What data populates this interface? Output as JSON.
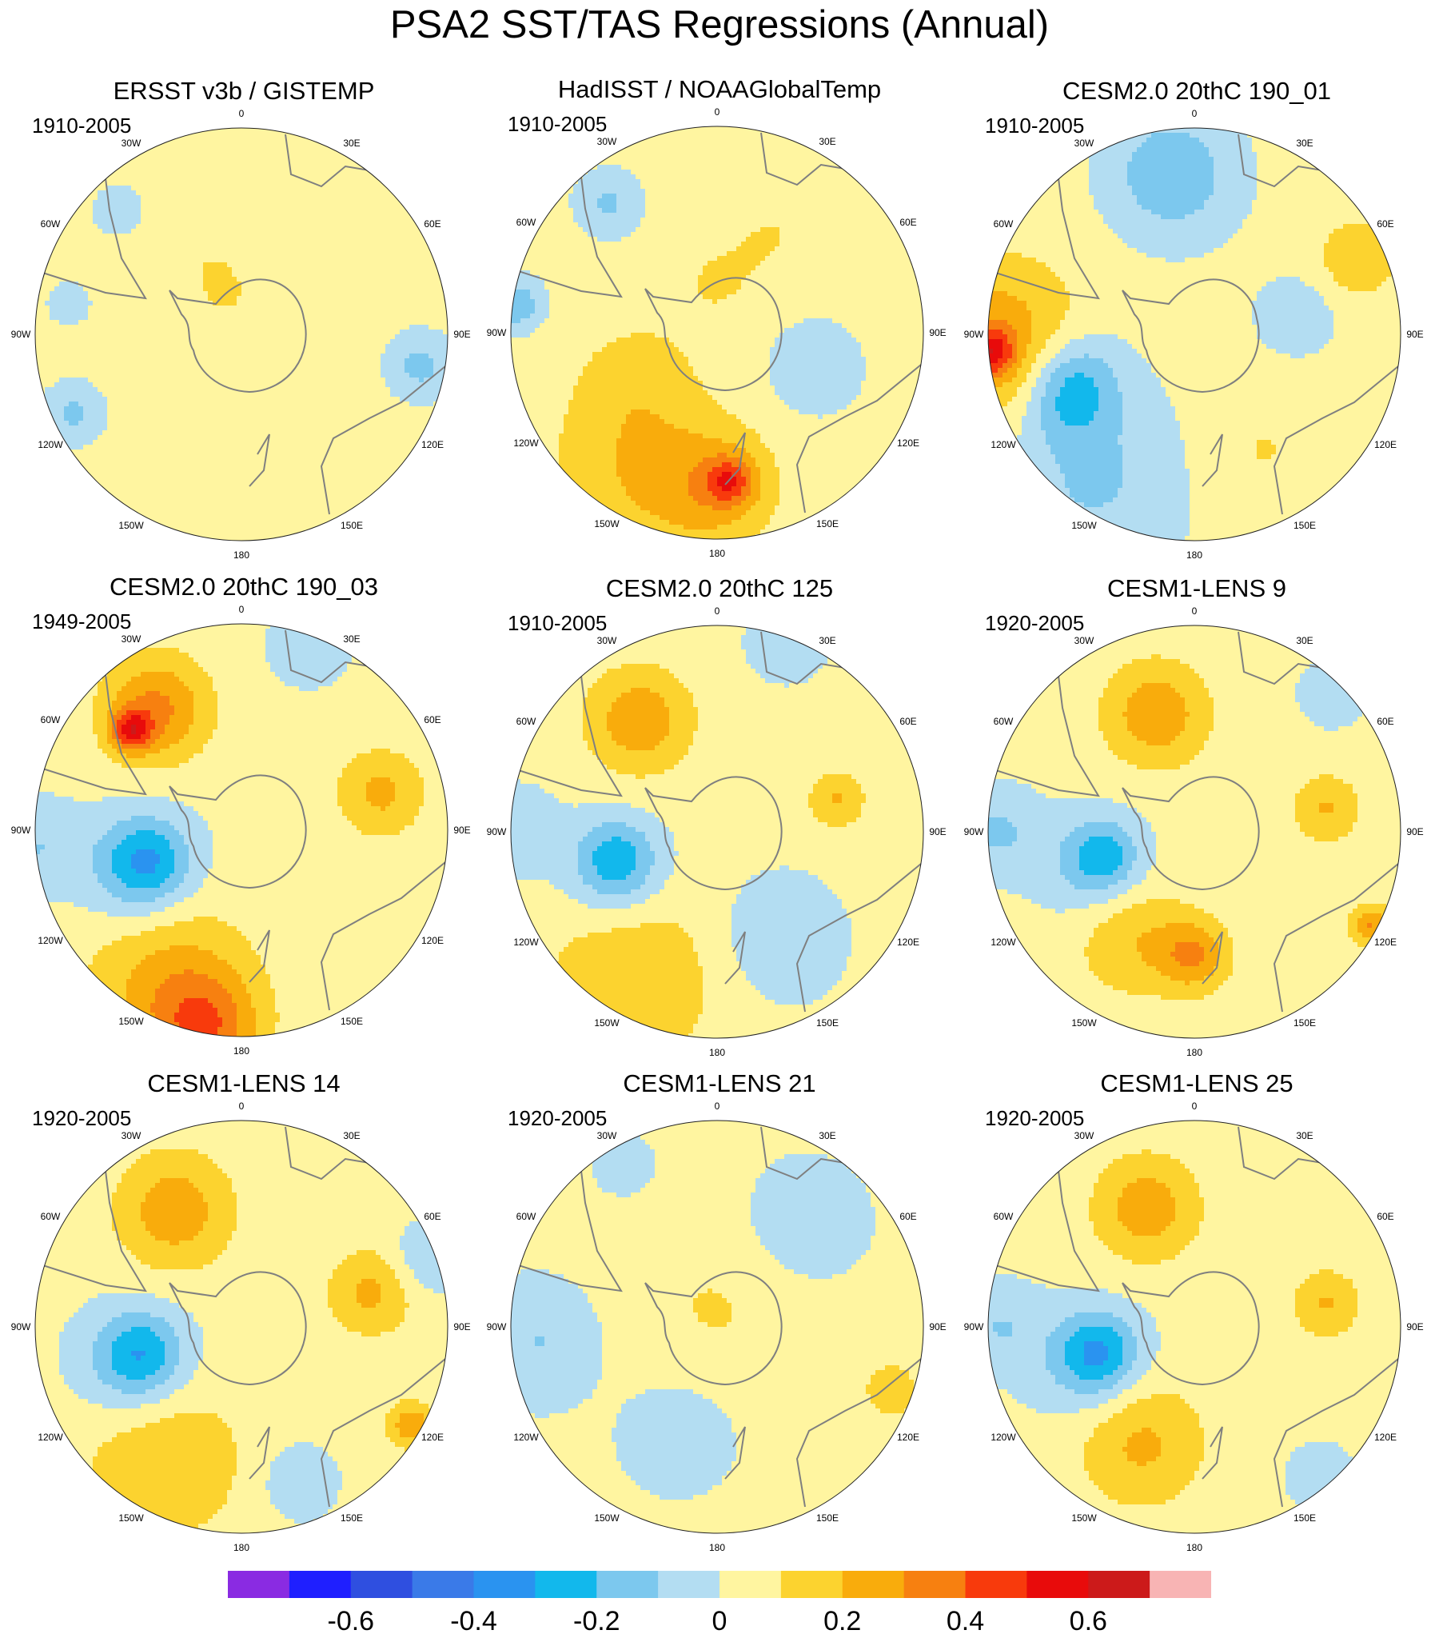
{
  "title": "PSA2 SST/TAS Regressions (Annual)",
  "chart_data": {
    "type": "contour-map",
    "projection": "south-polar-stereographic",
    "variable": "SST/TAS regression on PSA2",
    "season": "Annual",
    "longitude_labels": [
      "0",
      "30E",
      "60E",
      "90E",
      "120E",
      "150E",
      "180",
      "150W",
      "120W",
      "90W",
      "60W",
      "30W"
    ],
    "colorbar": {
      "levels": [
        -0.7,
        -0.6,
        -0.5,
        -0.4,
        -0.3,
        -0.2,
        -0.1,
        0,
        0.1,
        0.2,
        0.3,
        0.4,
        0.5,
        0.6,
        0.7
      ],
      "tick_labels": [
        "-0.6",
        "-0.4",
        "-0.2",
        "0",
        "0.2",
        "0.4",
        "0.6"
      ],
      "tick_values": [
        -0.6,
        -0.4,
        -0.2,
        0,
        0.2,
        0.4,
        0.6
      ],
      "colors": [
        "#8a2be2",
        "#1f1fff",
        "#2f4fe0",
        "#3a7ae8",
        "#2a93f0",
        "#12b8ec",
        "#7cc8ee",
        "#b3ddf2",
        "#fff5a0",
        "#fcd32f",
        "#f9ac0c",
        "#f78010",
        "#f83a0c",
        "#e80b0b",
        "#cc1a1a",
        "#f8b4b4"
      ]
    },
    "panels": [
      {
        "title": "ERSST v3b / GISTEMP",
        "period": "1910-2005",
        "blobs": [
          {
            "lon": -20,
            "r": 0.2,
            "rad": 0.09,
            "v": 0.08
          },
          {
            "lon": -25,
            "r": 0.35,
            "rad": 0.1,
            "v": 0.07
          },
          {
            "lon": 175,
            "r": 0.4,
            "rad": 0.1,
            "v": 0.07
          },
          {
            "lon": 100,
            "r": 0.88,
            "rad": 0.1,
            "v": -0.16
          },
          {
            "lon": -115,
            "r": 0.9,
            "rad": 0.09,
            "v": -0.15
          },
          {
            "lon": -80,
            "r": 0.85,
            "rad": 0.06,
            "v": -0.12
          },
          {
            "lon": -45,
            "r": 0.85,
            "rad": 0.07,
            "v": -0.12
          }
        ]
      },
      {
        "title": "HadISST / NOAAGlobalTemp",
        "period": "1910-2005",
        "blobs": [
          {
            "lon": 0,
            "r": 0.25,
            "rad": 0.17,
            "v": 0.08
          },
          {
            "lon": -120,
            "r": 0.45,
            "rad": 0.22,
            "v": 0.1
          },
          {
            "lon": -150,
            "r": 0.8,
            "rad": 0.3,
            "v": 0.16
          },
          {
            "lon": 180,
            "r": 0.75,
            "rad": 0.2,
            "v": 0.2
          },
          {
            "lon": 175,
            "r": 0.72,
            "rad": 0.08,
            "v": 0.27
          },
          {
            "lon": -40,
            "r": 0.82,
            "rad": 0.1,
            "v": -0.14
          },
          {
            "lon": -82,
            "r": 0.98,
            "rad": 0.08,
            "v": -0.22
          },
          {
            "lon": 110,
            "r": 0.5,
            "rad": 0.14,
            "v": -0.12
          },
          {
            "lon": 30,
            "r": 0.55,
            "rad": 0.15,
            "v": 0.07
          }
        ]
      },
      {
        "title": "CESM2.0 20thC 190_01",
        "period": "1910-2005",
        "blobs": [
          {
            "lon": -8,
            "r": 0.78,
            "rad": 0.2,
            "v": -0.22
          },
          {
            "lon": -92,
            "r": 0.95,
            "rad": 0.28,
            "v": 0.25
          },
          {
            "lon": -95,
            "r": 0.99,
            "rad": 0.08,
            "v": 0.35
          },
          {
            "lon": -110,
            "r": 0.62,
            "rad": 0.16,
            "v": -0.22
          },
          {
            "lon": -120,
            "r": 0.72,
            "rad": 0.14,
            "v": -0.12
          },
          {
            "lon": 65,
            "r": 0.88,
            "rad": 0.14,
            "v": 0.16
          },
          {
            "lon": 80,
            "r": 0.5,
            "rad": 0.12,
            "v": -0.12
          },
          {
            "lon": 150,
            "r": 0.65,
            "rad": 0.22,
            "v": 0.08
          },
          {
            "lon": -145,
            "r": 0.85,
            "rad": 0.3,
            "v": -0.14
          }
        ]
      },
      {
        "title": "CESM2.0 20thC 190_03",
        "period": "1949-2005",
        "blobs": [
          {
            "lon": -35,
            "r": 0.72,
            "rad": 0.18,
            "v": 0.3
          },
          {
            "lon": -48,
            "r": 0.72,
            "rad": 0.07,
            "v": 0.38
          },
          {
            "lon": -108,
            "r": 0.48,
            "rad": 0.14,
            "v": -0.25
          },
          {
            "lon": -112,
            "r": 0.55,
            "rad": 0.2,
            "v": -0.14
          },
          {
            "lon": -155,
            "r": 0.82,
            "rad": 0.28,
            "v": 0.22
          },
          {
            "lon": -170,
            "r": 0.98,
            "rad": 0.18,
            "v": 0.28
          },
          {
            "lon": 75,
            "r": 0.7,
            "rad": 0.15,
            "v": 0.2
          },
          {
            "lon": 20,
            "r": 0.95,
            "rad": 0.12,
            "v": -0.12
          },
          {
            "lon": -95,
            "r": 1.0,
            "rad": 0.15,
            "v": -0.12
          }
        ]
      },
      {
        "title": "CESM2.0 20thC 125",
        "period": "1910-2005",
        "blobs": [
          {
            "lon": -35,
            "r": 0.66,
            "rad": 0.18,
            "v": 0.25
          },
          {
            "lon": -105,
            "r": 0.5,
            "rad": 0.13,
            "v": -0.22
          },
          {
            "lon": -112,
            "r": 0.55,
            "rad": 0.18,
            "v": -0.12
          },
          {
            "lon": -150,
            "r": 0.82,
            "rad": 0.3,
            "v": 0.17
          },
          {
            "lon": 75,
            "r": 0.6,
            "rad": 0.1,
            "v": 0.18
          },
          {
            "lon": 150,
            "r": 0.6,
            "rad": 0.2,
            "v": -0.12
          },
          {
            "lon": 20,
            "r": 0.98,
            "rad": 0.12,
            "v": -0.12
          },
          {
            "lon": -90,
            "r": 0.98,
            "rad": 0.14,
            "v": -0.12
          }
        ]
      },
      {
        "title": "CESM1-LENS 9",
        "period": "1920-2005",
        "blobs": [
          {
            "lon": -18,
            "r": 0.6,
            "rad": 0.18,
            "v": 0.25
          },
          {
            "lon": -105,
            "r": 0.45,
            "rad": 0.12,
            "v": -0.22
          },
          {
            "lon": -110,
            "r": 0.55,
            "rad": 0.18,
            "v": -0.12
          },
          {
            "lon": -150,
            "r": 0.6,
            "rad": 0.2,
            "v": 0.17
          },
          {
            "lon": 180,
            "r": 0.6,
            "rad": 0.12,
            "v": 0.26
          },
          {
            "lon": 80,
            "r": 0.65,
            "rad": 0.12,
            "v": 0.18
          },
          {
            "lon": 118,
            "r": 0.97,
            "rad": 0.07,
            "v": 0.28
          },
          {
            "lon": -90,
            "r": 0.95,
            "rad": 0.14,
            "v": -0.14
          },
          {
            "lon": 45,
            "r": 0.95,
            "rad": 0.1,
            "v": -0.12
          }
        ]
      },
      {
        "title": "CESM1-LENS 14",
        "period": "1920-2005",
        "blobs": [
          {
            "lon": -30,
            "r": 0.65,
            "rad": 0.2,
            "v": 0.24
          },
          {
            "lon": -105,
            "r": 0.5,
            "rad": 0.14,
            "v": -0.24
          },
          {
            "lon": -110,
            "r": 0.58,
            "rad": 0.2,
            "v": -0.13
          },
          {
            "lon": -150,
            "r": 0.75,
            "rad": 0.28,
            "v": 0.17
          },
          {
            "lon": 75,
            "r": 0.65,
            "rad": 0.15,
            "v": 0.2
          },
          {
            "lon": 70,
            "r": 0.95,
            "rad": 0.12,
            "v": -0.12
          },
          {
            "lon": 120,
            "r": 0.95,
            "rad": 0.08,
            "v": 0.25
          },
          {
            "lon": 160,
            "r": 0.8,
            "rad": 0.12,
            "v": -0.12
          }
        ]
      },
      {
        "title": "CESM1-LENS 21",
        "period": "1920-2005",
        "blobs": [
          {
            "lon": 40,
            "r": 0.65,
            "rad": 0.2,
            "v": -0.13
          },
          {
            "lon": -95,
            "r": 0.85,
            "rad": 0.2,
            "v": -0.13
          },
          {
            "lon": -160,
            "r": 0.55,
            "rad": 0.18,
            "v": -0.13
          },
          {
            "lon": 0,
            "r": 0.1,
            "rad": 0.35,
            "v": 0.08
          },
          {
            "lon": 110,
            "r": 0.9,
            "rad": 0.1,
            "v": 0.14
          },
          {
            "lon": -30,
            "r": 0.9,
            "rad": 0.1,
            "v": -0.1
          }
        ]
      },
      {
        "title": "CESM1-LENS 25",
        "period": "1920-2005",
        "blobs": [
          {
            "lon": -22,
            "r": 0.62,
            "rad": 0.18,
            "v": 0.24
          },
          {
            "lon": -105,
            "r": 0.48,
            "rad": 0.13,
            "v": -0.26
          },
          {
            "lon": -110,
            "r": 0.56,
            "rad": 0.2,
            "v": -0.13
          },
          {
            "lon": -155,
            "r": 0.62,
            "rad": 0.22,
            "v": 0.2
          },
          {
            "lon": 80,
            "r": 0.65,
            "rad": 0.12,
            "v": 0.18
          },
          {
            "lon": -90,
            "r": 0.95,
            "rad": 0.14,
            "v": -0.12
          },
          {
            "lon": 140,
            "r": 0.95,
            "rad": 0.1,
            "v": -0.12
          }
        ]
      }
    ]
  }
}
